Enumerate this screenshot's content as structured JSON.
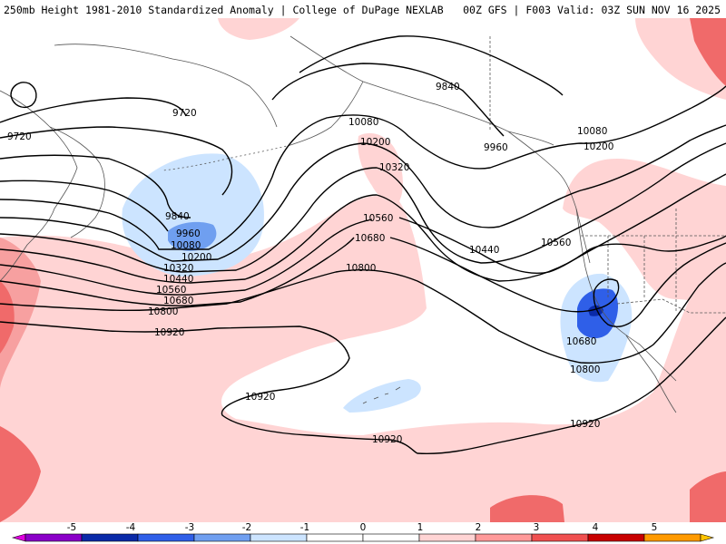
{
  "header": {
    "left": "250mb Height 1981-2010 Standardized Anomaly | College of DuPage NEXLAB",
    "right": "00Z GFS | F003 Valid: 03Z SUN NOV 16 2025"
  },
  "contour_labels": [
    {
      "text": "9720"
    },
    {
      "text": "9720"
    },
    {
      "text": "9840"
    },
    {
      "text": "9840"
    },
    {
      "text": "9960"
    },
    {
      "text": "9960"
    },
    {
      "text": "10080"
    },
    {
      "text": "10080"
    },
    {
      "text": "10080"
    },
    {
      "text": "10200"
    },
    {
      "text": "10200"
    },
    {
      "text": "10200"
    },
    {
      "text": "10320"
    },
    {
      "text": "10320"
    },
    {
      "text": "10440"
    },
    {
      "text": "10440"
    },
    {
      "text": "10560"
    },
    {
      "text": "10560"
    },
    {
      "text": "10560"
    },
    {
      "text": "10680"
    },
    {
      "text": "10680"
    },
    {
      "text": "10680"
    },
    {
      "text": "10800"
    },
    {
      "text": "10800"
    },
    {
      "text": "10800"
    },
    {
      "text": "10920"
    },
    {
      "text": "10920"
    },
    {
      "text": "10920"
    },
    {
      "text": "10920"
    }
  ],
  "colorbar": {
    "ticks": [
      "-5",
      "-4",
      "-3",
      "-2",
      "-1",
      "0",
      "1",
      "2",
      "3",
      "4",
      "5"
    ],
    "colors": [
      "#e000e0",
      "#8a00c8",
      "#0a2aa8",
      "#2f5fe8",
      "#6f9ff0",
      "#cce4ff",
      "#ffffff",
      "#ffffff",
      "#ffd4d4",
      "#ff9a9a",
      "#f05050",
      "#c80000",
      "#ff9a00",
      "#ffc400"
    ]
  },
  "colors": {
    "pos_light": "#ffd4d4",
    "pos_mid": "#f7a0a0",
    "pos_strong": "#f06a6a",
    "neg_light": "#cce4ff",
    "neg_mid": "#6f9ff0",
    "neg_strong": "#2f5fe8"
  }
}
